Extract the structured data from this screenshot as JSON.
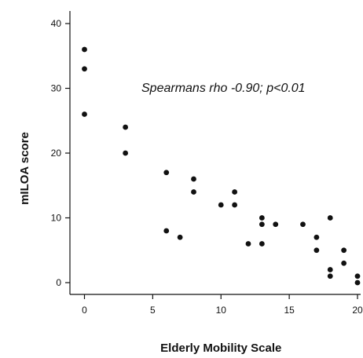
{
  "chart_data": {
    "type": "scatter",
    "xlabel": "Elderly Mobility Scale",
    "ylabel": "mILOA score",
    "xlim": [
      0,
      20
    ],
    "ylim": [
      0,
      40
    ],
    "x_ticks": [
      0,
      5,
      10,
      15,
      20
    ],
    "y_ticks": [
      0,
      10,
      20,
      30,
      40
    ],
    "annotations": [
      {
        "text": "Spearmans rho -0.90; p<0.01"
      }
    ],
    "grid": false,
    "point_color": "#111111",
    "points": [
      {
        "x": 0,
        "y": 36
      },
      {
        "x": 0,
        "y": 33
      },
      {
        "x": 0,
        "y": 26
      },
      {
        "x": 3,
        "y": 24
      },
      {
        "x": 3,
        "y": 20
      },
      {
        "x": 6,
        "y": 17
      },
      {
        "x": 6,
        "y": 8
      },
      {
        "x": 7,
        "y": 7
      },
      {
        "x": 8,
        "y": 16
      },
      {
        "x": 8,
        "y": 14
      },
      {
        "x": 10,
        "y": 12
      },
      {
        "x": 11,
        "y": 14
      },
      {
        "x": 11,
        "y": 12
      },
      {
        "x": 12,
        "y": 6
      },
      {
        "x": 13,
        "y": 10
      },
      {
        "x": 13,
        "y": 9
      },
      {
        "x": 13,
        "y": 6
      },
      {
        "x": 14,
        "y": 9
      },
      {
        "x": 16,
        "y": 9
      },
      {
        "x": 17,
        "y": 7
      },
      {
        "x": 17,
        "y": 5
      },
      {
        "x": 18,
        "y": 10
      },
      {
        "x": 18,
        "y": 2
      },
      {
        "x": 18,
        "y": 1
      },
      {
        "x": 19,
        "y": 5
      },
      {
        "x": 19,
        "y": 3
      },
      {
        "x": 20,
        "y": 1
      },
      {
        "x": 20,
        "y": 0
      }
    ]
  }
}
